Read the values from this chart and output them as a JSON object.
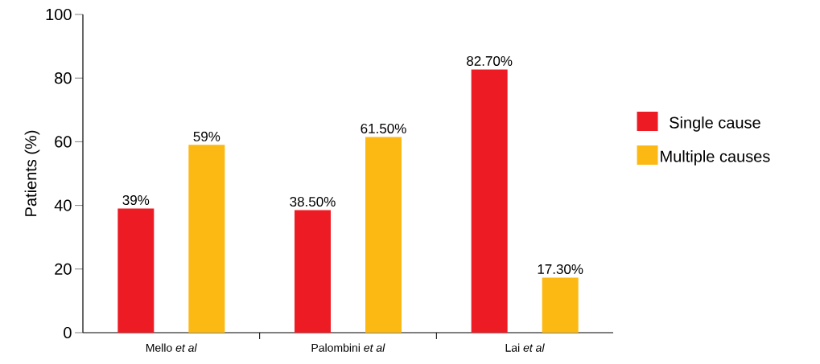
{
  "chart_data": {
    "type": "bar",
    "categories": [
      "Mello *et al*",
      "Palombini *et al*",
      "Lai *et al*"
    ],
    "series": [
      {
        "name": "Single cause",
        "color": "#ed1c24",
        "values": [
          39,
          38.5,
          82.7
        ],
        "value_labels": [
          "39%",
          "38.50%",
          "82.70%"
        ]
      },
      {
        "name": "Multiple causes",
        "color": "#fdb913",
        "values": [
          59,
          61.5,
          17.3
        ],
        "value_labels": [
          "59%",
          "61.50%",
          "17.30%"
        ]
      }
    ],
    "ylabel": "Patients (%)",
    "ylim": [
      0,
      100
    ],
    "yticks": [
      0,
      20,
      40,
      60,
      80,
      100
    ],
    "legend": "right"
  }
}
